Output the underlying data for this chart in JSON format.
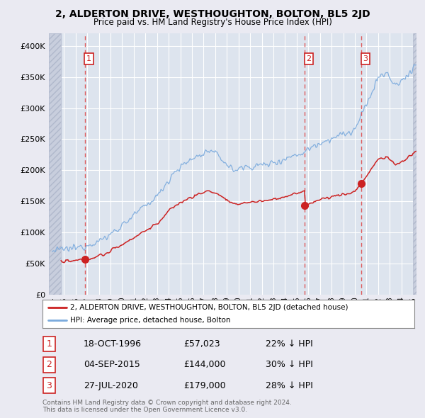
{
  "title": "2, ALDERTON DRIVE, WESTHOUGHTON, BOLTON, BL5 2JD",
  "subtitle": "Price paid vs. HM Land Registry's House Price Index (HPI)",
  "legend_line1": "2, ALDERTON DRIVE, WESTHOUGHTON, BOLTON, BL5 2JD (detached house)",
  "legend_line2": "HPI: Average price, detached house, Bolton",
  "transactions": [
    {
      "num": 1,
      "date": "18-OCT-1996",
      "price": 57023,
      "rel": "22% ↓ HPI",
      "x_year": 1996.79
    },
    {
      "num": 2,
      "date": "04-SEP-2015",
      "price": 144000,
      "rel": "30% ↓ HPI",
      "x_year": 2015.67
    },
    {
      "num": 3,
      "date": "27-JUL-2020",
      "price": 179000,
      "rel": "28% ↓ HPI",
      "x_year": 2020.56
    }
  ],
  "footnote1": "Contains HM Land Registry data © Crown copyright and database right 2024.",
  "footnote2": "This data is licensed under the Open Government Licence v3.0.",
  "xlim": [
    1993.7,
    2025.3
  ],
  "ylim": [
    0,
    420000
  ],
  "yticks": [
    0,
    50000,
    100000,
    150000,
    200000,
    250000,
    300000,
    350000,
    400000
  ],
  "background_color": "#eaeaf2",
  "plot_bg_color": "#dde4ee",
  "grid_color": "#ffffff",
  "hatch_color": "#c8cedd",
  "line_color_red": "#cc2222",
  "line_color_blue": "#7aaadd",
  "marker_color": "#cc2222",
  "dashed_color": "#dd4444"
}
